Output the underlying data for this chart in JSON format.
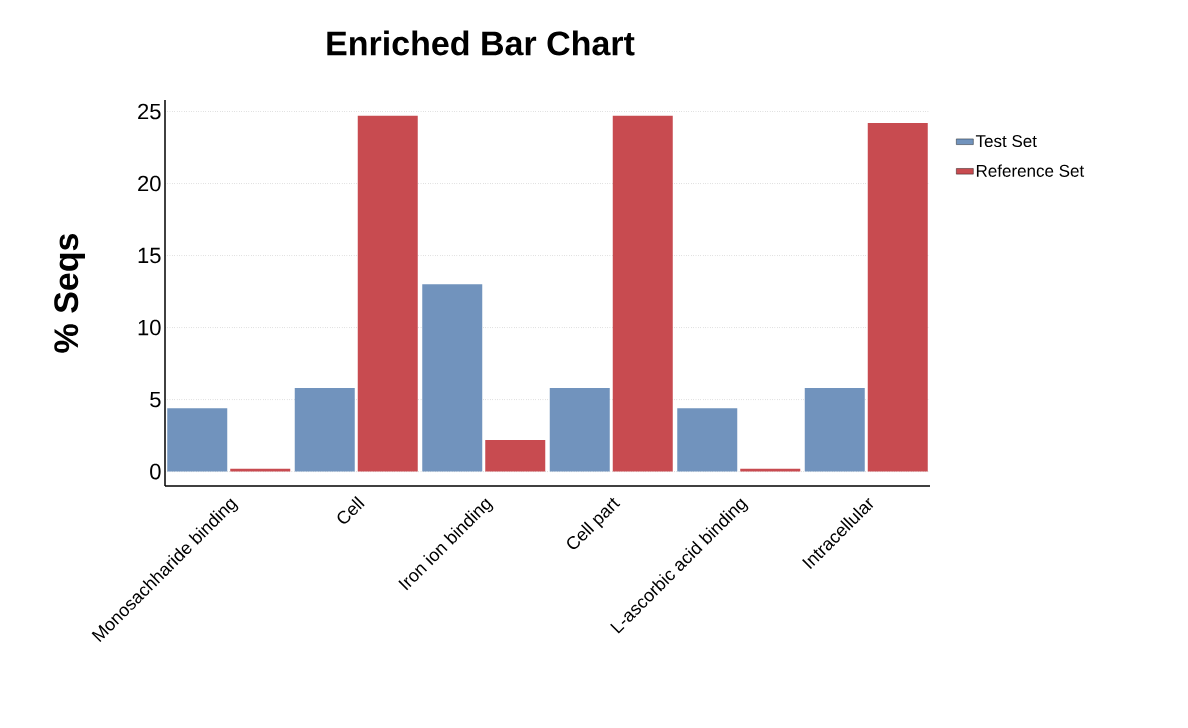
{
  "chart_data": {
    "type": "bar",
    "title": "Enriched Bar Chart",
    "ylabel": "% Seqs",
    "categories": [
      "Monosachharide binding",
      "Cell",
      "Iron ion binding",
      "Cell part",
      "L-ascorbic acid binding",
      "Intracellular"
    ],
    "series": [
      {
        "name": "Test Set",
        "color": "#7193bd",
        "values": [
          4.4,
          5.8,
          13.0,
          5.8,
          4.4,
          5.8
        ]
      },
      {
        "name": "Reference Set",
        "color": "#c84b50",
        "values": [
          0.2,
          24.7,
          2.2,
          24.7,
          0.2,
          24.2
        ]
      }
    ],
    "ylim": [
      -1,
      25.8
    ],
    "yticks": [
      0,
      5,
      10,
      15,
      20,
      25
    ],
    "grid": "y",
    "legend": "top right"
  }
}
